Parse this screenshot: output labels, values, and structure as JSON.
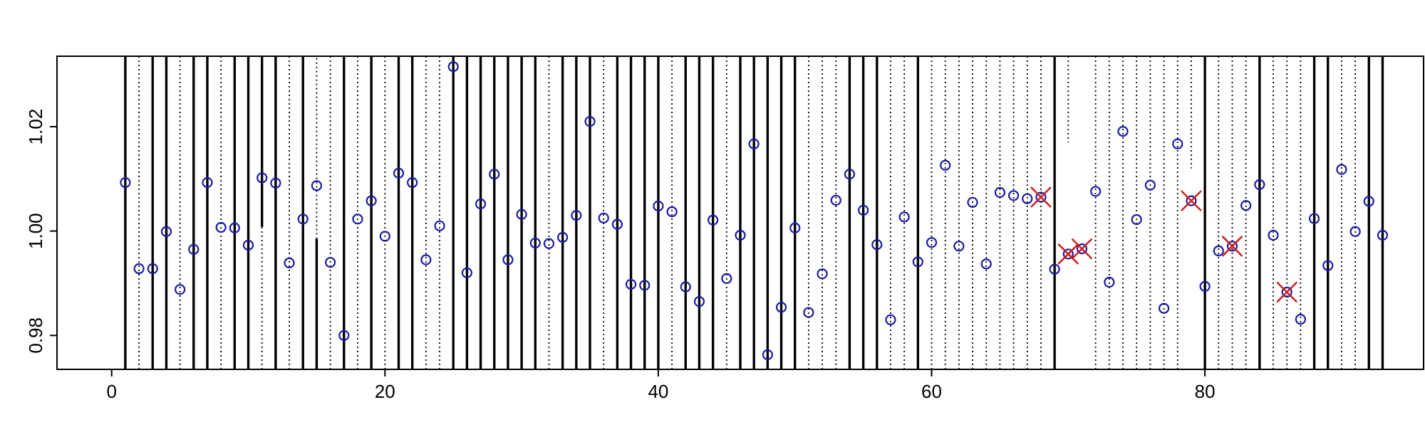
{
  "chart_data": {
    "type": "scatter",
    "title": "",
    "xlabel": "",
    "ylabel": "",
    "xlim": [
      -4,
      96
    ],
    "ylim": [
      0.9735,
      1.0335
    ],
    "x_ticks": [
      0,
      20,
      40,
      60,
      80
    ],
    "x_tick_labels": [
      "0",
      "20",
      "40",
      "60",
      "80"
    ],
    "y_ticks": [
      0.98,
      1.0,
      1.02
    ],
    "y_tick_labels": [
      "0.98",
      "1.00",
      "1.02"
    ],
    "grid": false,
    "legend": "none",
    "colors": {
      "point": "#1a1aa6",
      "flag": "#cc1f1f",
      "line": "#000000"
    },
    "points": {
      "x": [
        1,
        2,
        3,
        4,
        5,
        6,
        7,
        8,
        9,
        10,
        11,
        12,
        13,
        14,
        15,
        16,
        17,
        18,
        19,
        20,
        21,
        22,
        23,
        24,
        25,
        26,
        27,
        28,
        29,
        30,
        31,
        32,
        33,
        34,
        35,
        36,
        37,
        38,
        39,
        40,
        41,
        42,
        43,
        44,
        45,
        46,
        47,
        48,
        49,
        50,
        51,
        52,
        53,
        54,
        55,
        56,
        57,
        58,
        59,
        60,
        61,
        62,
        63,
        64,
        65,
        66,
        67,
        68,
        69,
        70,
        71,
        72,
        73,
        74,
        75,
        76,
        77,
        78,
        79,
        80,
        81,
        82,
        83,
        84,
        85,
        86,
        87,
        88,
        89,
        90,
        91,
        92,
        93
      ],
      "y": [
        1.0093,
        0.9928,
        0.9928,
        0.9999,
        0.9888,
        0.9965,
        1.0093,
        1.0007,
        1.0006,
        0.9973,
        1.0102,
        1.0092,
        0.9939,
        1.0023,
        1.0087,
        0.994,
        0.98,
        1.0023,
        1.0058,
        0.999,
        1.0111,
        1.0093,
        0.9945,
        1.001,
        1.0315,
        0.992,
        1.0052,
        1.0109,
        0.9945,
        1.0032,
        0.9977,
        0.9976,
        0.9988,
        1.003,
        1.021,
        1.0025,
        1.0013,
        0.9898,
        0.9896,
        1.0048,
        1.0037,
        0.9893,
        0.9865,
        1.0021,
        0.9909,
        0.9992,
        1.0167,
        0.9763,
        0.9854,
        1.0006,
        0.9844,
        0.9918,
        1.0059,
        1.0109,
        1.004,
        0.9974,
        0.983,
        1.0027,
        0.9941,
        0.9978,
        1.0126,
        0.9971,
        1.0055,
        0.9937,
        1.0074,
        1.0068,
        1.0062,
        1.0065,
        0.9927,
        0.9956,
        0.9966,
        1.0076,
        0.9902,
        1.0191,
        1.0022,
        1.0088,
        0.9852,
        1.0167,
        1.0058,
        0.9894,
        0.9962,
        0.9971,
        1.0049,
        1.0089,
        0.9992,
        0.9883,
        0.9831,
        1.0024,
        0.9934,
        1.0118,
        0.9999,
        1.0057,
        0.9992
      ]
    },
    "flagged_x": [
      68,
      70,
      71,
      79,
      82,
      86
    ],
    "solid_lines": [
      {
        "x": 1,
        "y1": 0.9735,
        "y2": 1.0335
      },
      {
        "x": 3,
        "y1": 0.9735,
        "y2": 1.0335
      },
      {
        "x": 4,
        "y1": 0.9735,
        "y2": 1.0335
      },
      {
        "x": 6,
        "y1": 0.9735,
        "y2": 1.0335
      },
      {
        "x": 7,
        "y1": 0.9735,
        "y2": 1.0335
      },
      {
        "x": 9,
        "y1": 0.9735,
        "y2": 1.0335
      },
      {
        "x": 10,
        "y1": 0.9735,
        "y2": 1.0335
      },
      {
        "x": 11,
        "y1": 1.0335,
        "y2": 1.0008
      },
      {
        "x": 12,
        "y1": 0.9735,
        "y2": 1.0335
      },
      {
        "x": 14,
        "y1": 0.9735,
        "y2": 1.0335
      },
      {
        "x": 15,
        "y1": 0.9985,
        "y2": 0.9735
      },
      {
        "x": 17,
        "y1": 0.9735,
        "y2": 1.0335
      },
      {
        "x": 19,
        "y1": 0.9735,
        "y2": 1.0335
      },
      {
        "x": 21,
        "y1": 0.9735,
        "y2": 1.0335
      },
      {
        "x": 22,
        "y1": 0.9735,
        "y2": 1.0335
      },
      {
        "x": 25,
        "y1": 0.9735,
        "y2": 1.0335
      },
      {
        "x": 26,
        "y1": 0.9735,
        "y2": 1.0335
      },
      {
        "x": 27,
        "y1": 0.9735,
        "y2": 1.0335
      },
      {
        "x": 28,
        "y1": 0.9735,
        "y2": 1.0335
      },
      {
        "x": 29,
        "y1": 0.9735,
        "y2": 1.0335
      },
      {
        "x": 30,
        "y1": 0.9735,
        "y2": 1.0335
      },
      {
        "x": 31,
        "y1": 0.9735,
        "y2": 1.0335
      },
      {
        "x": 33,
        "y1": 0.9735,
        "y2": 1.0335
      },
      {
        "x": 34,
        "y1": 0.9735,
        "y2": 1.0335
      },
      {
        "x": 35,
        "y1": 0.9735,
        "y2": 1.0335
      },
      {
        "x": 37,
        "y1": 0.9735,
        "y2": 1.0335
      },
      {
        "x": 38,
        "y1": 0.9735,
        "y2": 1.0335
      },
      {
        "x": 39,
        "y1": 0.9735,
        "y2": 1.0335
      },
      {
        "x": 40,
        "y1": 0.9735,
        "y2": 1.0335
      },
      {
        "x": 42,
        "y1": 0.9735,
        "y2": 1.0335
      },
      {
        "x": 43,
        "y1": 0.9735,
        "y2": 1.0335
      },
      {
        "x": 44,
        "y1": 0.9735,
        "y2": 1.0335
      },
      {
        "x": 46,
        "y1": 0.9735,
        "y2": 1.0335
      },
      {
        "x": 47,
        "y1": 0.9735,
        "y2": 1.0335
      },
      {
        "x": 48,
        "y1": 0.9735,
        "y2": 1.0335
      },
      {
        "x": 49,
        "y1": 0.9735,
        "y2": 1.0335
      },
      {
        "x": 50,
        "y1": 0.9735,
        "y2": 1.0335
      },
      {
        "x": 54,
        "y1": 0.9735,
        "y2": 1.0335
      },
      {
        "x": 55,
        "y1": 0.9735,
        "y2": 1.0335
      },
      {
        "x": 56,
        "y1": 0.9735,
        "y2": 1.0335
      },
      {
        "x": 59,
        "y1": 0.9735,
        "y2": 1.0335
      },
      {
        "x": 69,
        "y1": 0.9735,
        "y2": 1.0335
      },
      {
        "x": 80,
        "y1": 0.9735,
        "y2": 1.0335
      },
      {
        "x": 84,
        "y1": 0.9735,
        "y2": 1.0335
      },
      {
        "x": 88,
        "y1": 0.9735,
        "y2": 1.0335
      },
      {
        "x": 89,
        "y1": 0.9735,
        "y2": 1.0335
      },
      {
        "x": 92,
        "y1": 0.9735,
        "y2": 1.0335
      },
      {
        "x": 93,
        "y1": 0.9735,
        "y2": 1.0335
      }
    ],
    "dotted_lines": [
      {
        "x": 2,
        "y1": 0.9735,
        "y2": 1.0335
      },
      {
        "x": 5,
        "y1": 0.9735,
        "y2": 1.0335
      },
      {
        "x": 8,
        "y1": 0.9735,
        "y2": 1.0335
      },
      {
        "x": 11,
        "y1": 0.9735,
        "y2": 1.0008
      },
      {
        "x": 13,
        "y1": 0.9735,
        "y2": 1.0335
      },
      {
        "x": 15,
        "y1": 0.9985,
        "y2": 1.0335
      },
      {
        "x": 16,
        "y1": 0.9735,
        "y2": 1.0335
      },
      {
        "x": 18,
        "y1": 0.9735,
        "y2": 1.0335
      },
      {
        "x": 20,
        "y1": 0.9735,
        "y2": 1.0335
      },
      {
        "x": 23,
        "y1": 0.9735,
        "y2": 1.0335
      },
      {
        "x": 24,
        "y1": 0.9735,
        "y2": 1.0335
      },
      {
        "x": 32,
        "y1": 0.9735,
        "y2": 1.0335
      },
      {
        "x": 36,
        "y1": 0.9735,
        "y2": 1.0335
      },
      {
        "x": 41,
        "y1": 0.9735,
        "y2": 1.0335
      },
      {
        "x": 45,
        "y1": 0.9735,
        "y2": 1.0335
      },
      {
        "x": 51,
        "y1": 0.9735,
        "y2": 1.0335
      },
      {
        "x": 52,
        "y1": 0.9735,
        "y2": 1.0335
      },
      {
        "x": 53,
        "y1": 0.9735,
        "y2": 1.0335
      },
      {
        "x": 57,
        "y1": 0.9735,
        "y2": 1.0335
      },
      {
        "x": 58,
        "y1": 0.9735,
        "y2": 1.0335
      },
      {
        "x": 60,
        "y1": 0.9735,
        "y2": 1.0335
      },
      {
        "x": 61,
        "y1": 0.9735,
        "y2": 1.0335
      },
      {
        "x": 62,
        "y1": 0.9735,
        "y2": 1.0335
      },
      {
        "x": 63,
        "y1": 0.9735,
        "y2": 1.0335
      },
      {
        "x": 64,
        "y1": 0.9735,
        "y2": 1.0335
      },
      {
        "x": 65,
        "y1": 0.9735,
        "y2": 1.0335
      },
      {
        "x": 66,
        "y1": 0.9735,
        "y2": 1.0335
      },
      {
        "x": 67,
        "y1": 0.9735,
        "y2": 1.0335
      },
      {
        "x": 68,
        "y1": 0.9735,
        "y2": 1.0335
      },
      {
        "x": 70,
        "y1": 1.0335,
        "y2": 1.017
      },
      {
        "x": 72,
        "y1": 0.9735,
        "y2": 1.0335
      },
      {
        "x": 73,
        "y1": 0.9735,
        "y2": 1.0335
      },
      {
        "x": 74,
        "y1": 0.9735,
        "y2": 1.0335
      },
      {
        "x": 75,
        "y1": 0.9735,
        "y2": 1.0335
      },
      {
        "x": 76,
        "y1": 0.9735,
        "y2": 1.0335
      },
      {
        "x": 77,
        "y1": 0.9735,
        "y2": 1.0335
      },
      {
        "x": 78,
        "y1": 0.9735,
        "y2": 1.0335
      },
      {
        "x": 79,
        "y1": 1.0335,
        "y2": 1.012
      },
      {
        "x": 81,
        "y1": 0.9735,
        "y2": 1.0335
      },
      {
        "x": 82,
        "y1": 0.9735,
        "y2": 1.0335
      },
      {
        "x": 83,
        "y1": 0.9735,
        "y2": 1.0335
      },
      {
        "x": 85,
        "y1": 0.9735,
        "y2": 1.0335
      },
      {
        "x": 86,
        "y1": 0.9735,
        "y2": 1.0335
      },
      {
        "x": 87,
        "y1": 0.9735,
        "y2": 1.0335
      },
      {
        "x": 90,
        "y1": 0.9735,
        "y2": 1.0335
      },
      {
        "x": 91,
        "y1": 0.9735,
        "y2": 1.0335
      }
    ]
  }
}
